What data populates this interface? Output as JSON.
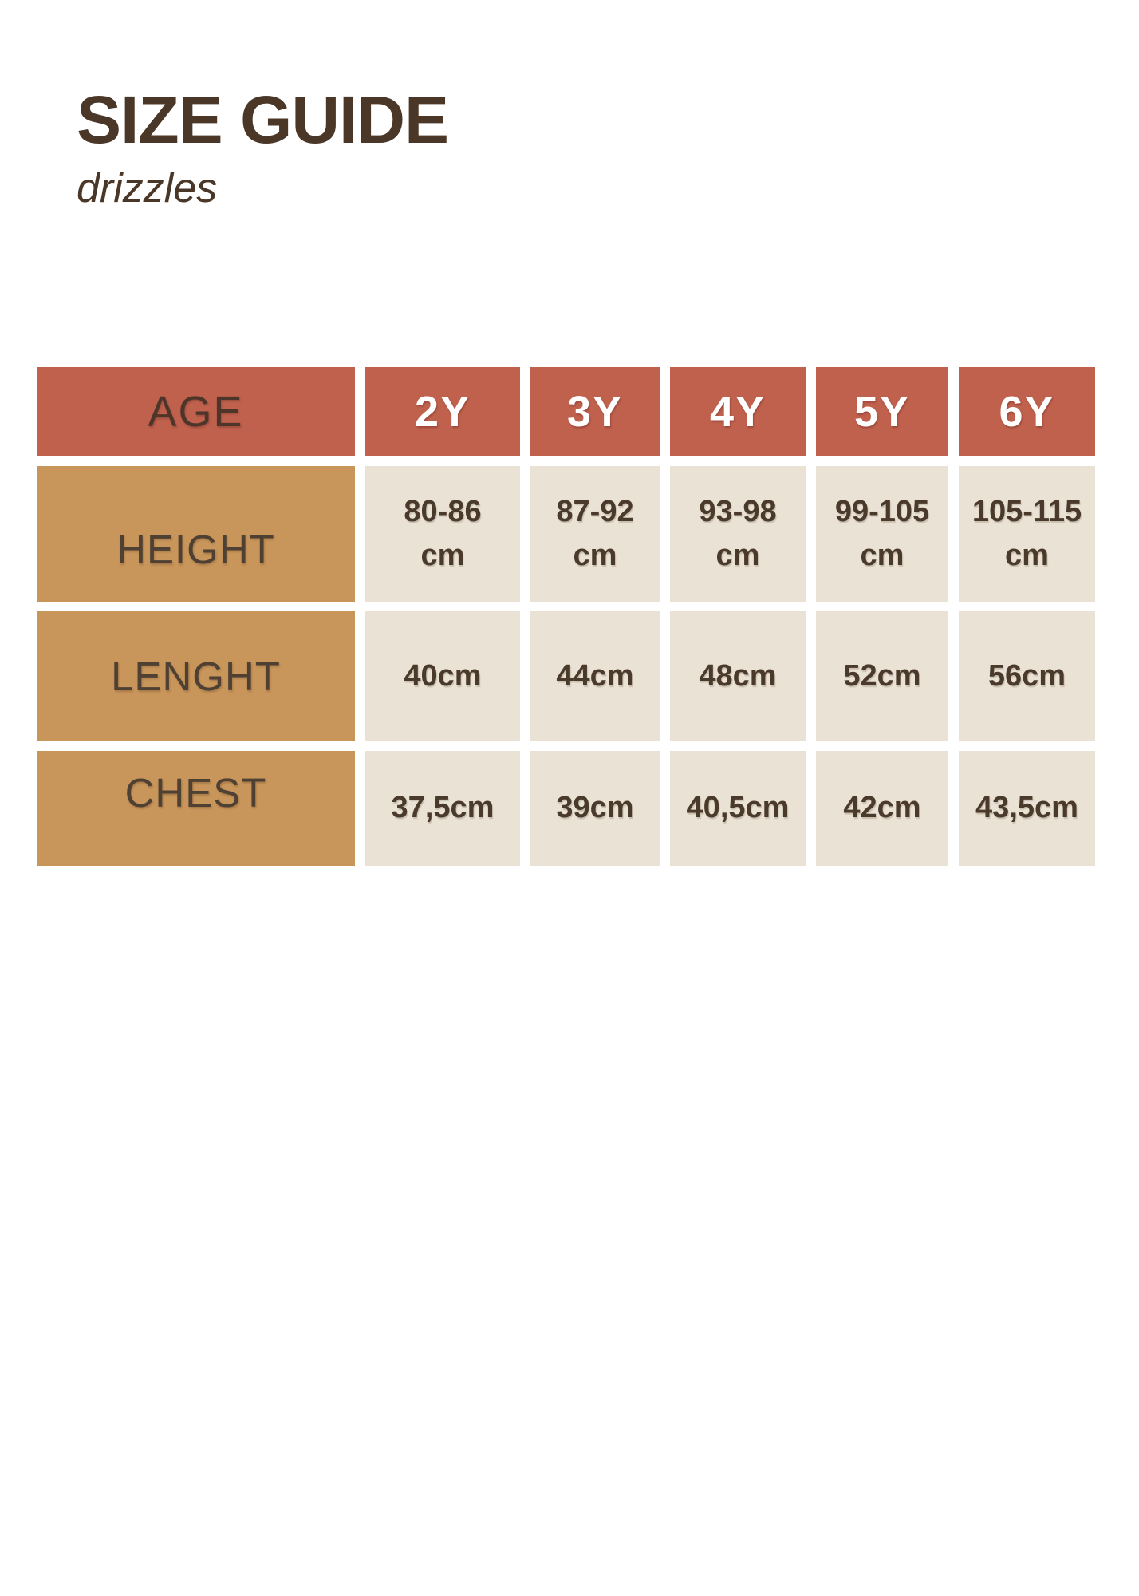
{
  "title": "SIZE GUIDE",
  "subtitle": "drizzles",
  "colors": {
    "header_background": "#c0614e",
    "row_label_background": "#c8955a",
    "value_cell_background": "#eae2d5",
    "title_text": "#4b3728",
    "value_text": "#4a3a2b",
    "header_column_text": "#ffffff"
  },
  "table": {
    "header": {
      "label": "AGE",
      "columns": [
        "2Y",
        "3Y",
        "4Y",
        "5Y",
        "6Y"
      ]
    },
    "rows": [
      {
        "label": "HEIGHT",
        "values": [
          "80-86 cm",
          "87-92 cm",
          "93-98 cm",
          "99-105 cm",
          "105-115 cm"
        ]
      },
      {
        "label": "LENGHT",
        "values": [
          "40cm",
          "44cm",
          "48cm",
          "52cm",
          "56cm"
        ]
      },
      {
        "label": "CHEST",
        "values": [
          "37,5cm",
          "39cm",
          "40,5cm",
          "42cm",
          "43,5cm"
        ]
      }
    ]
  }
}
